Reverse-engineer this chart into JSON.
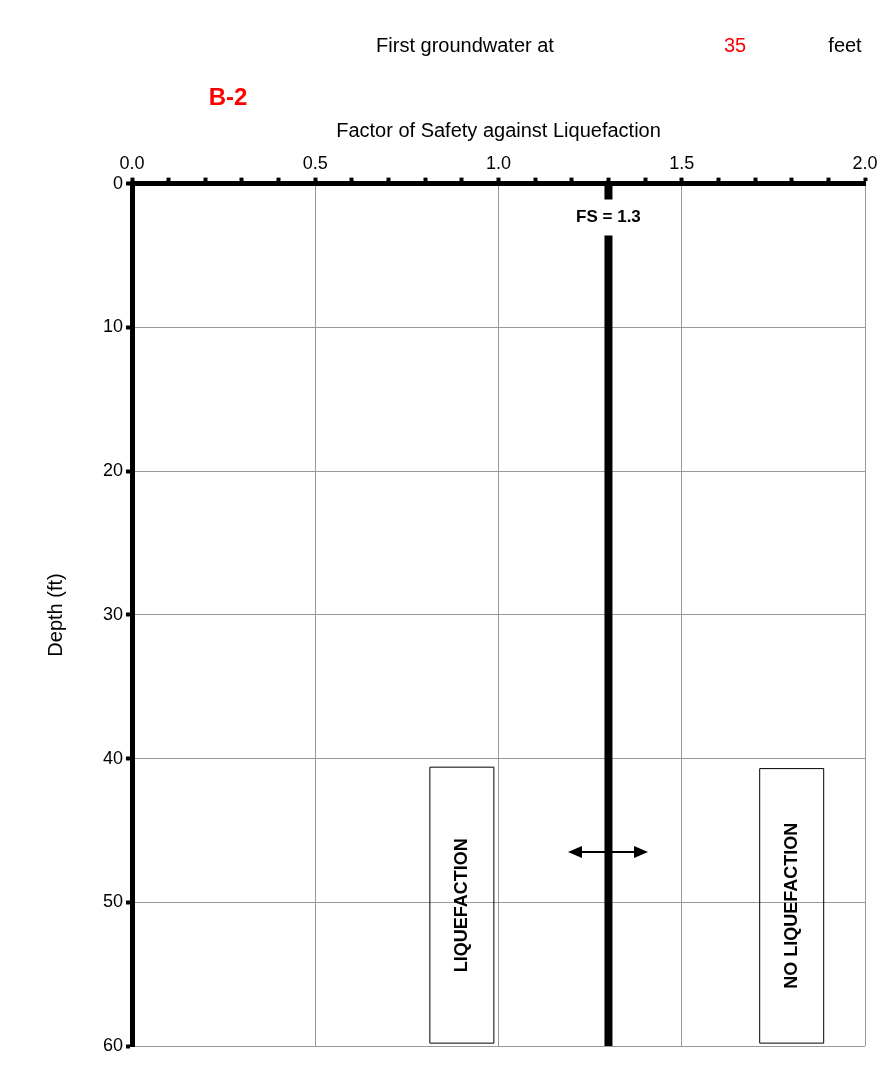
{
  "chart_data": {
    "type": "line",
    "title": "First groundwater at",
    "xlabel": "Factor of Safety against Liquefaction",
    "ylabel": "Depth (ft)",
    "annotations": [
      "35",
      "feet",
      "B-2",
      "LIQUEFACTION",
      "NO LIQUEFACTION"
    ],
    "xlim": [
      0,
      2
    ],
    "xticks": [
      {
        "value": 0,
        "label": "0.0"
      },
      {
        "value": 0.1,
        "label": null
      },
      {
        "value": 0.2,
        "label": null
      },
      {
        "value": 0.3,
        "label": null
      },
      {
        "value": 0.4,
        "label": null
      },
      {
        "value": 0.5,
        "label": "0.5"
      },
      {
        "value": 0.6,
        "label": null
      },
      {
        "value": 0.7,
        "label": null
      },
      {
        "value": 0.8,
        "label": null
      },
      {
        "value": 0.9,
        "label": null
      },
      {
        "value": 1,
        "label": "1.0"
      },
      {
        "value": 1.1,
        "label": null
      },
      {
        "value": 1.2,
        "label": null
      },
      {
        "value": 1.3,
        "label": null
      },
      {
        "value": 1.4,
        "label": null
      },
      {
        "value": 1.5,
        "label": "1.5"
      },
      {
        "value": 1.6,
        "label": null
      },
      {
        "value": 1.7,
        "label": null
      },
      {
        "value": 1.8,
        "label": null
      },
      {
        "value": 1.9,
        "label": null
      },
      {
        "value": 2,
        "label": "2.0"
      }
    ],
    "ylim": [
      60,
      0
    ],
    "yticks": [
      0,
      10,
      20,
      30,
      40,
      50,
      60
    ],
    "ref_lines": [
      {
        "axis": "x",
        "value": 1.3,
        "label": "FS = 1.3",
        "color": "#000000"
      }
    ],
    "grid": true,
    "legend": false
  }
}
